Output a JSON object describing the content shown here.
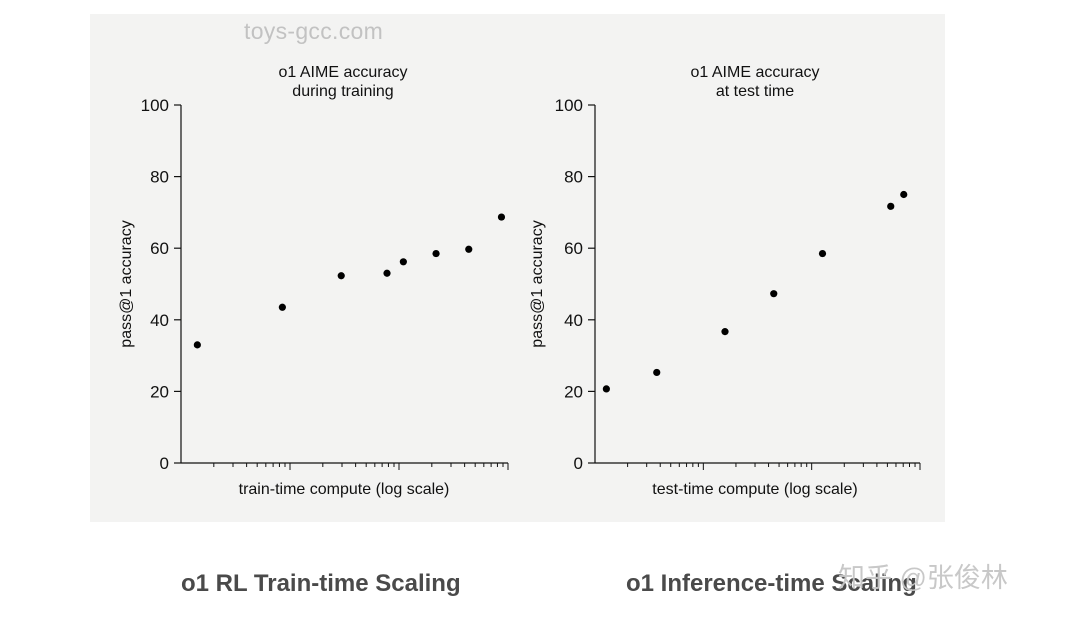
{
  "watermark_top": "toys-gcc.com",
  "watermark_bottom": "知乎 @张俊林",
  "captions": {
    "left": "o1 RL Train-time Scaling",
    "right": "o1 Inference-time Scaling"
  },
  "chart_data": [
    {
      "type": "scatter",
      "title": [
        "o1 AIME accuracy",
        "during training"
      ],
      "xlabel": "train-time compute (log scale)",
      "ylabel": "pass@1 accuracy",
      "ylim": [
        0,
        100
      ],
      "yticks": [
        0,
        20,
        40,
        60,
        80,
        100
      ],
      "xscale": "log",
      "xlim": [
        0,
        1
      ],
      "points": [
        {
          "x": 0.05,
          "y": 33
        },
        {
          "x": 0.31,
          "y": 43.5
        },
        {
          "x": 0.49,
          "y": 52.3
        },
        {
          "x": 0.63,
          "y": 53
        },
        {
          "x": 0.68,
          "y": 56.2
        },
        {
          "x": 0.78,
          "y": 58.5
        },
        {
          "x": 0.88,
          "y": 59.7
        },
        {
          "x": 0.98,
          "y": 68.7
        }
      ]
    },
    {
      "type": "scatter",
      "title": [
        "o1 AIME accuracy",
        "at test time"
      ],
      "xlabel": "test-time compute (log scale)",
      "ylabel": "pass@1 accuracy",
      "ylim": [
        0,
        100
      ],
      "yticks": [
        0,
        20,
        40,
        60,
        80,
        100
      ],
      "xscale": "log",
      "xlim": [
        0,
        1
      ],
      "points": [
        {
          "x": 0.035,
          "y": 20.7
        },
        {
          "x": 0.19,
          "y": 25.3
        },
        {
          "x": 0.4,
          "y": 36.7
        },
        {
          "x": 0.55,
          "y": 47.3
        },
        {
          "x": 0.7,
          "y": 58.5
        },
        {
          "x": 0.91,
          "y": 71.7
        },
        {
          "x": 0.95,
          "y": 75
        }
      ]
    }
  ]
}
